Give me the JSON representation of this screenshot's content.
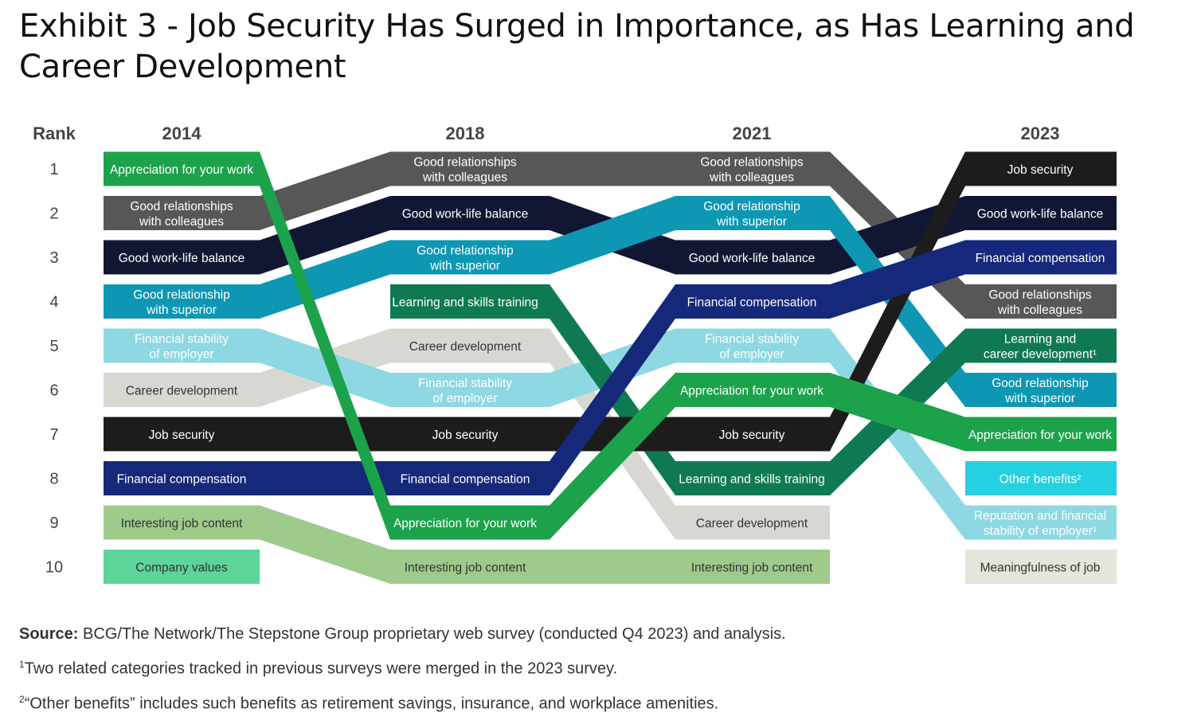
{
  "title": "Exhibit 3 - Job Security Has Surged in Importance, as Has Learning and Career Development",
  "rank_header": "Rank",
  "ranks": [
    "1",
    "2",
    "3",
    "4",
    "5",
    "6",
    "7",
    "8",
    "9",
    "10"
  ],
  "source_label": "Source:",
  "source_text": "BCG/The Network/The Stepstone Group proprietary web survey (conducted Q4 2023) and analysis.",
  "footnote1_mark": "1",
  "footnote1_text": "Two related categories tracked in previous surveys were merged in the 2023 survey.",
  "footnote2_mark": "2",
  "footnote2_text": "“Other benefits” includes such benefits as retirement savings, insurance, and workplace amenities.",
  "chart_data": {
    "type": "bump",
    "title": "Exhibit 3 - Job Security Has Surged in Importance, as Has Learning and Career Development",
    "years": [
      "2014",
      "2018",
      "2021",
      "2023"
    ],
    "y_axis": "Rank",
    "y_range": [
      1,
      10
    ],
    "series": [
      {
        "name": "Appreciation for your work",
        "color": "#1ca24b",
        "text_color": "#ffffff",
        "ranks": [
          1,
          9,
          6,
          7
        ],
        "labels": [
          "Appreciation for your work",
          "Appreciation for your work",
          "Appreciation for your work",
          "Appreciation for your work"
        ]
      },
      {
        "name": "Good relationships with colleagues",
        "color": "#575757",
        "text_color": "#ffffff",
        "ranks": [
          2,
          1,
          1,
          4
        ],
        "labels": [
          "Good relationships\nwith colleagues",
          "Good relationships\nwith colleagues",
          "Good relationships\nwith colleagues",
          "Good relationships\nwith colleagues"
        ]
      },
      {
        "name": "Good work-life balance",
        "color": "#111733",
        "text_color": "#ffffff",
        "ranks": [
          3,
          2,
          3,
          2
        ],
        "labels": [
          "Good work-life balance",
          "Good work-life balance",
          "Good work-life balance",
          "Good work-life balance"
        ]
      },
      {
        "name": "Good relationship with superior",
        "color": "#0e97b3",
        "text_color": "#ffffff",
        "ranks": [
          4,
          3,
          2,
          6
        ],
        "labels": [
          "Good relationship\nwith superior",
          "Good relationship\nwith superior",
          "Good relationship\nwith superior",
          "Good relationship\nwith superior"
        ]
      },
      {
        "name": "Financial stability of employer",
        "color": "#8dd8e2",
        "text_color": "#ffffff",
        "ranks": [
          5,
          6,
          5,
          9
        ],
        "labels": [
          "Financial stability\nof employer",
          "Financial stability\nof employer",
          "Financial stability\nof employer",
          "Reputation and financial\nstability of employer¹"
        ]
      },
      {
        "name": "Career development",
        "color": "#d8d8d3",
        "text_color": "#333333",
        "ranks": [
          6,
          5,
          9,
          null
        ],
        "labels": [
          "Career development",
          "Career development",
          "Career development",
          null
        ]
      },
      {
        "name": "Job security",
        "color": "#1c1c1c",
        "text_color": "#ffffff",
        "ranks": [
          7,
          7,
          7,
          1
        ],
        "labels": [
          "Job security",
          "Job security",
          "Job security",
          "Job security"
        ]
      },
      {
        "name": "Financial compensation",
        "color": "#15287a",
        "text_color": "#ffffff",
        "ranks": [
          8,
          8,
          4,
          3
        ],
        "labels": [
          "Financial compensation",
          "Financial compensation",
          "Financial compensation",
          "Financial compensation"
        ]
      },
      {
        "name": "Interesting job content",
        "color": "#9ecb8c",
        "text_color": "#333333",
        "ranks": [
          9,
          10,
          10,
          null
        ],
        "labels": [
          "Interesting job content",
          "Interesting job content",
          "Interesting job content",
          null
        ]
      },
      {
        "name": "Learning and skills training",
        "color": "#0f7a52",
        "text_color": "#ffffff",
        "ranks": [
          null,
          4,
          8,
          5
        ],
        "labels": [
          null,
          "Learning and skills training",
          "Learning and skills training",
          "Learning and\ncareer development¹"
        ]
      },
      {
        "name": "Company values",
        "color": "#5dd49a",
        "text_color": "#333333",
        "ranks": [
          10,
          null,
          null,
          null
        ],
        "labels": [
          "Company values",
          null,
          null,
          null
        ]
      },
      {
        "name": "Other benefits",
        "color": "#25d0e0",
        "text_color": "#ffffff",
        "ranks": [
          null,
          null,
          null,
          8
        ],
        "labels": [
          null,
          null,
          null,
          "Other benefits²"
        ]
      },
      {
        "name": "Meaningfulness of job",
        "color": "#e6e5db",
        "text_color": "#333333",
        "ranks": [
          null,
          null,
          null,
          10
        ],
        "labels": [
          null,
          null,
          null,
          "Meaningfulness of job"
        ]
      }
    ]
  }
}
